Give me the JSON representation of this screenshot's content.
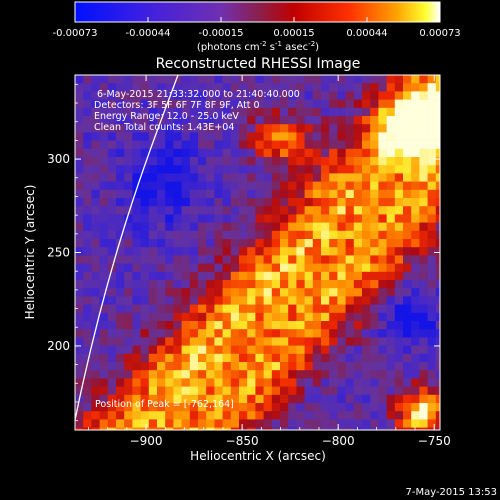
{
  "colorbar": {
    "ticks": [
      "-0.00073",
      "-0.00044",
      "-0.00015",
      "0.00015",
      "0.00044",
      "0.00073"
    ],
    "units_text": "(photons cm",
    "units_exp1": "-2",
    "units_mid": " s",
    "units_exp2": "-1",
    "units_mid2": " asec",
    "units_exp3": "-2",
    "units_close": ")"
  },
  "title": "Reconstructed RHESSI Image",
  "info": {
    "time_range": "6-May-2015 21:33:32.000 to 21:40:40.000",
    "detectors": "Detectors: 3F 5F 6F 7F 8F 9F, Att 0",
    "energy_range": "Energy Range: 12.0 - 25.0 keV",
    "clean_counts": "Clean     Total counts: 1.43E+04",
    "peak": "Position of Peak = [-762,164]"
  },
  "axes": {
    "xlabel": "Heliocentric X (arcsec)",
    "ylabel": "Heliocentric Y (arcsec)",
    "x_ticks": [
      {
        "value": -900,
        "label": "−900"
      },
      {
        "value": -850,
        "label": "−850"
      },
      {
        "value": -800,
        "label": "−800"
      },
      {
        "value": -750,
        "label": "−750"
      }
    ],
    "y_ticks": [
      {
        "value": 200,
        "label": "200"
      },
      {
        "value": 250,
        "label": "250"
      },
      {
        "value": 300,
        "label": "300"
      }
    ],
    "xlim": [
      -937,
      -747
    ],
    "ylim": [
      155,
      345
    ]
  },
  "footer_date": "7-May-2015 13:53",
  "colors": {
    "background": "#000000",
    "foreground": "#ffffff",
    "colormap": [
      "#0000ff",
      "#5a30c8",
      "#7a3aa0",
      "#b01818",
      "#ff2000",
      "#ff9000",
      "#ffff40",
      "#ffffff"
    ]
  }
}
